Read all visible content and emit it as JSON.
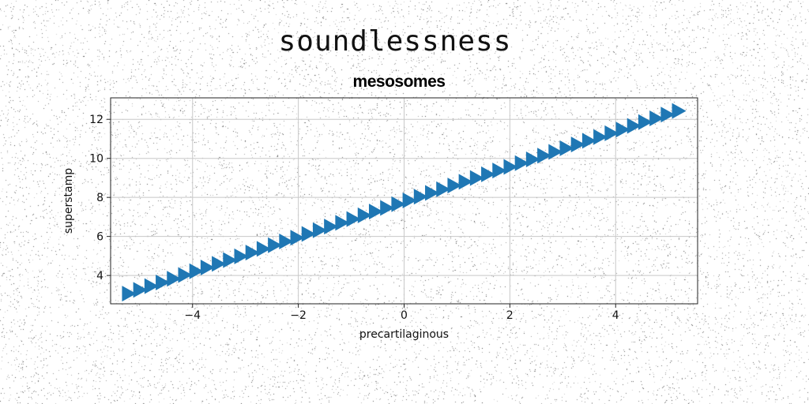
{
  "figure": {
    "suptitle": "soundlessness"
  },
  "chart_data": {
    "type": "scatter",
    "title": "mesosomes",
    "xlabel": "precartilaginous",
    "ylabel": "superstamp",
    "xlim": [
      -5.55,
      5.55
    ],
    "ylim": [
      2.55,
      13.1
    ],
    "xticks": [
      -4,
      -2,
      0,
      2,
      4
    ],
    "xtick_labels": [
      "−4",
      "−2",
      "0",
      "2",
      "4"
    ],
    "yticks": [
      4,
      6,
      8,
      10,
      12
    ],
    "ytick_labels": [
      "4",
      "6",
      "8",
      "10",
      "12"
    ],
    "grid": true,
    "marker": "triangle-right",
    "marker_color": "#1f77b4",
    "series": [
      {
        "x_start": -5.2,
        "x_end": 5.2,
        "n_points": 50,
        "slope": 0.9,
        "intercept": 7.75
      }
    ]
  }
}
